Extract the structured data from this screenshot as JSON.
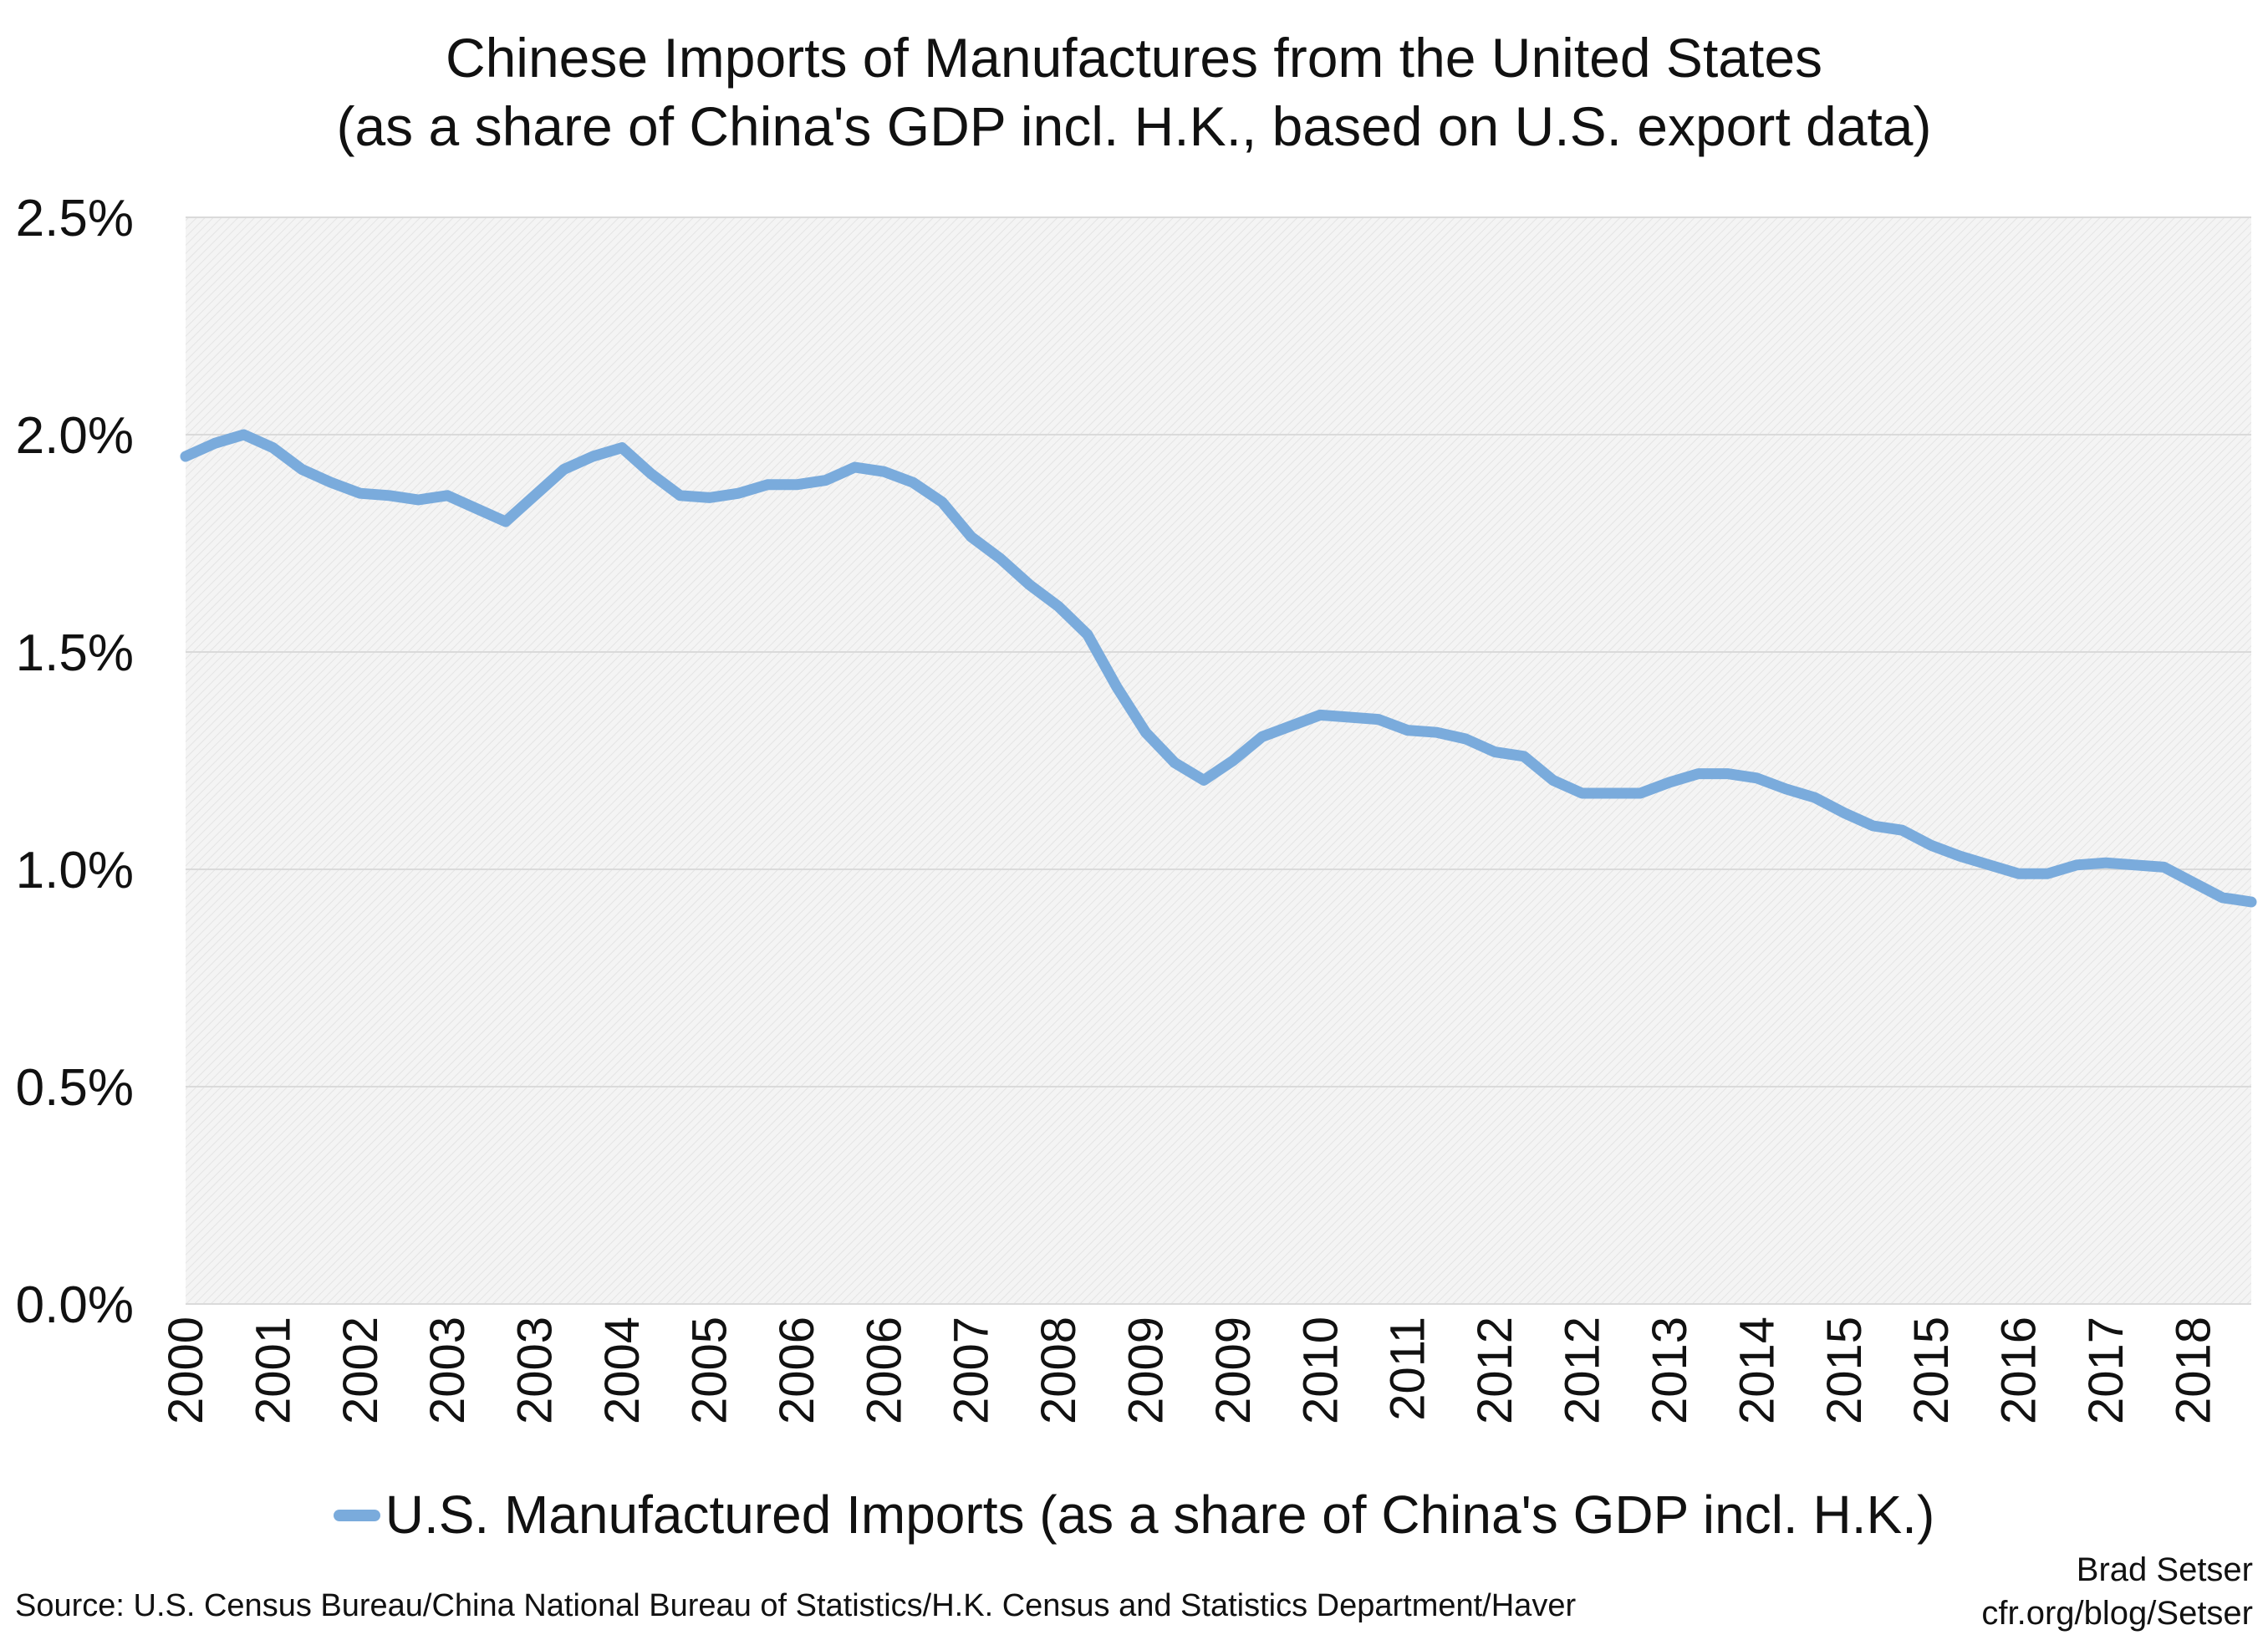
{
  "chart_data": {
    "type": "line",
    "title": "Chinese Imports of Manufactures from the United States",
    "subtitle": "(as a share of China's GDP incl. H.K., based on U.S. export data)",
    "xlabel": "",
    "ylabel": "",
    "ylim": [
      0,
      2.5
    ],
    "y_ticks": [
      "0.0%",
      "0.5%",
      "1.0%",
      "1.5%",
      "2.0%",
      "2.5%"
    ],
    "x_tick_labels": [
      "2000",
      "2001",
      "2002",
      "2003",
      "2003",
      "2004",
      "2005",
      "2006",
      "2006",
      "2007",
      "2008",
      "2009",
      "2009",
      "2010",
      "2011",
      "2012",
      "2012",
      "2013",
      "2014",
      "2015",
      "2015",
      "2016",
      "2017",
      "2018"
    ],
    "grid": true,
    "legend_position": "bottom",
    "series": [
      {
        "name": "U.S. Manufactured Imports (as a share of China's GDP incl. H.K.)",
        "color": "#7aabdc",
        "values": [
          1.95,
          1.98,
          2.0,
          1.97,
          1.92,
          1.89,
          1.865,
          1.86,
          1.85,
          1.86,
          1.83,
          1.8,
          1.86,
          1.92,
          1.95,
          1.97,
          1.91,
          1.86,
          1.855,
          1.865,
          1.885,
          1.885,
          1.895,
          1.925,
          1.915,
          1.89,
          1.845,
          1.765,
          1.715,
          1.655,
          1.605,
          1.54,
          1.42,
          1.315,
          1.245,
          1.205,
          1.25,
          1.305,
          1.33,
          1.355,
          1.35,
          1.345,
          1.32,
          1.315,
          1.3,
          1.27,
          1.26,
          1.205,
          1.175,
          1.175,
          1.175,
          1.2,
          1.22,
          1.22,
          1.21,
          1.185,
          1.165,
          1.13,
          1.1,
          1.09,
          1.055,
          1.03,
          1.01,
          0.99,
          0.99,
          1.01,
          1.015,
          1.01,
          1.005,
          0.97,
          0.935,
          0.925
        ]
      }
    ]
  },
  "footer": {
    "source": "Source: U.S. Census Bureau/China National Bureau of Statistics/H.K. Census and Statistics Department/Haver",
    "author": "Brad Setser",
    "site": "cfr.org/blog/Setser"
  }
}
